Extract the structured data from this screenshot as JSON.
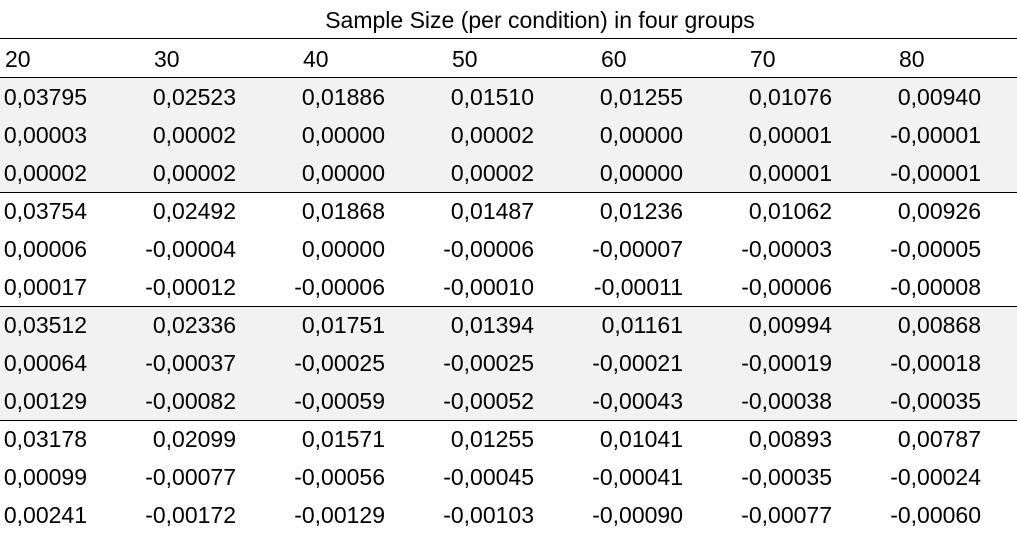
{
  "table": {
    "title": "Sample Size (per condition) in four groups",
    "header": [
      "20",
      "30",
      "40",
      "50",
      "60",
      "70",
      "80"
    ],
    "rows": [
      [
        "0,03795",
        "0,02523",
        "0,01886",
        "0,01510",
        "0,01255",
        "0,01076",
        "0,00940"
      ],
      [
        "0,00003",
        "0,00002",
        "0,00000",
        "0,00002",
        "0,00000",
        "0,00001",
        "-0,00001"
      ],
      [
        "0,00002",
        "0,00002",
        "0,00000",
        "0,00002",
        "0,00000",
        "0,00001",
        "-0,00001"
      ],
      [
        "0,03754",
        "0,02492",
        "0,01868",
        "0,01487",
        "0,01236",
        "0,01062",
        "0,00926"
      ],
      [
        "0,00006",
        "-0,00004",
        "0,00000",
        "-0,00006",
        "-0,00007",
        "-0,00003",
        "-0,00005"
      ],
      [
        "0,00017",
        "-0,00012",
        "-0,00006",
        "-0,00010",
        "-0,00011",
        "-0,00006",
        "-0,00008"
      ],
      [
        "0,03512",
        "0,02336",
        "0,01751",
        "0,01394",
        "0,01161",
        "0,00994",
        "0,00868"
      ],
      [
        "0,00064",
        "-0,00037",
        "-0,00025",
        "-0,00025",
        "-0,00021",
        "-0,00019",
        "-0,00018"
      ],
      [
        "0,00129",
        "-0,00082",
        "-0,00059",
        "-0,00052",
        "-0,00043",
        "-0,00038",
        "-0,00035"
      ],
      [
        "0,03178",
        "0,02099",
        "0,01571",
        "0,01255",
        "0,01041",
        "0,00893",
        "0,00787"
      ],
      [
        "0,00099",
        "-0,00077",
        "-0,00056",
        "-0,00045",
        "-0,00041",
        "-0,00035",
        "-0,00024"
      ],
      [
        "0,00241",
        "-0,00172",
        "-0,00129",
        "-0,00103",
        "-0,00090",
        "-0,00077",
        "-0,00060"
      ]
    ]
  }
}
